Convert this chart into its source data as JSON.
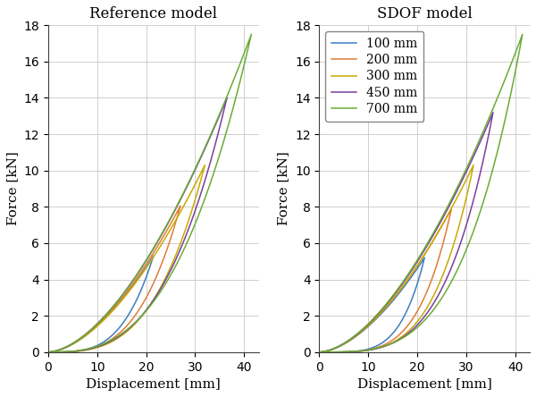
{
  "title_left": "Reference model",
  "title_right": "SDOF model",
  "xlabel": "Displacement [mm]",
  "ylabel": "Force [kN]",
  "xlim": [
    0,
    43
  ],
  "ylim": [
    0,
    18
  ],
  "xticks": [
    0,
    10,
    20,
    30,
    40
  ],
  "yticks": [
    0,
    2,
    4,
    6,
    8,
    10,
    12,
    14,
    16,
    18
  ],
  "background_color": "#FFFFFF",
  "grid_color": "#C8C8C8",
  "title_fontsize": 12,
  "label_fontsize": 11,
  "tick_fontsize": 10,
  "legend_fontsize": 10,
  "series": [
    {
      "label": "100 mm",
      "color": "#3E7EBF",
      "ref_xmax": 21.5,
      "ref_ymax": 5.3,
      "ref_power_up": 1.7,
      "ref_power_dn": 3.5,
      "sdof_xmax": 21.5,
      "sdof_ymax": 5.2,
      "sdof_power_up": 1.7,
      "sdof_power_dn": 4.5
    },
    {
      "label": "200 mm",
      "color": "#E07B39",
      "ref_xmax": 27.0,
      "ref_ymax": 8.05,
      "ref_power_up": 1.7,
      "ref_power_dn": 3.3,
      "sdof_xmax": 27.0,
      "sdof_ymax": 7.9,
      "sdof_power_up": 1.7,
      "sdof_power_dn": 4.2
    },
    {
      "label": "300 mm",
      "color": "#C8AA00",
      "ref_xmax": 32.0,
      "ref_ymax": 10.3,
      "ref_power_up": 1.7,
      "ref_power_dn": 3.2,
      "sdof_xmax": 31.5,
      "sdof_ymax": 10.3,
      "sdof_power_up": 1.7,
      "sdof_power_dn": 4.0
    },
    {
      "label": "450 mm",
      "color": "#7B3F9E",
      "ref_xmax": 36.5,
      "ref_ymax": 14.0,
      "ref_power_up": 1.7,
      "ref_power_dn": 3.0,
      "sdof_xmax": 35.5,
      "sdof_ymax": 13.2,
      "sdof_power_up": 1.7,
      "sdof_power_dn": 3.8
    },
    {
      "label": "700 mm",
      "color": "#6AAC35",
      "ref_xmax": 41.5,
      "ref_ymax": 17.5,
      "ref_power_up": 1.7,
      "ref_power_dn": 2.8,
      "sdof_xmax": 41.5,
      "sdof_ymax": 17.5,
      "sdof_power_up": 1.7,
      "sdof_power_dn": 3.5
    }
  ]
}
